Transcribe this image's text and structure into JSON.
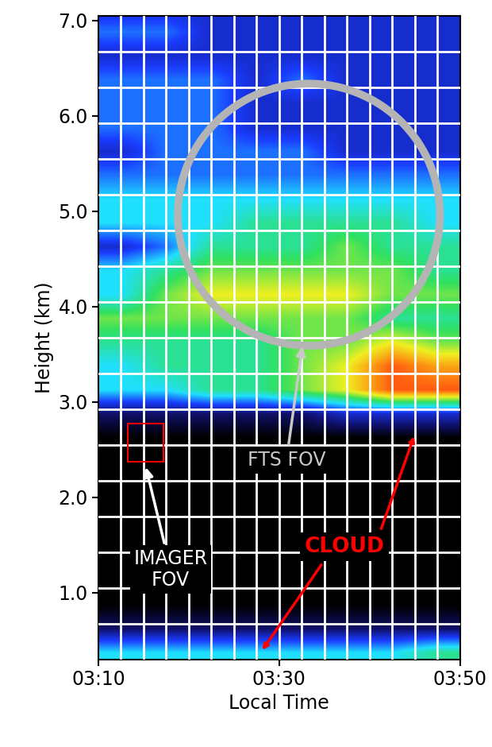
{
  "chart_data": {
    "type": "heatmap",
    "x_label": "Local Time",
    "y_label": "Height (km)",
    "xlim": [
      190,
      230
    ],
    "xticks": [
      {
        "value": 190,
        "label": "03:10"
      },
      {
        "value": 210,
        "label": "03:30"
      },
      {
        "value": 230,
        "label": "03:50"
      }
    ],
    "ylim": [
      0.3,
      7.05
    ],
    "yticks": [
      {
        "value": 1,
        "label": "1.0"
      },
      {
        "value": 2,
        "label": "2.0"
      },
      {
        "value": 3,
        "label": "3.0"
      },
      {
        "value": 4,
        "label": "4.0"
      },
      {
        "value": 5,
        "label": "5.0"
      },
      {
        "value": 6,
        "label": "6.0"
      },
      {
        "value": 7,
        "label": "7.0"
      }
    ],
    "x_edges": [
      190,
      195,
      200,
      205,
      210,
      215,
      220,
      225,
      230
    ],
    "y_edges": [
      0.25,
      0.5,
      0.75,
      1.0,
      1.25,
      1.5,
      1.75,
      2.0,
      2.25,
      2.5,
      2.75,
      3.0,
      3.25,
      3.5,
      3.75,
      4.0,
      4.25,
      4.5,
      4.75,
      5.0,
      5.25,
      5.5,
      5.75,
      6.0,
      6.25,
      6.5,
      6.75,
      7.0,
      7.25
    ],
    "value_range": [
      0,
      10
    ],
    "cells": [
      [
        4,
        4,
        4,
        4,
        4,
        4,
        4,
        5
      ],
      [
        1,
        1,
        1,
        1,
        1,
        1,
        1,
        1
      ],
      [
        0,
        0,
        0,
        0,
        0,
        0,
        0,
        0
      ],
      [
        0,
        0,
        0,
        0,
        0,
        0,
        0,
        0
      ],
      [
        0,
        0,
        0,
        0,
        0,
        0,
        0,
        0
      ],
      [
        0,
        0,
        0,
        0,
        0,
        0,
        0,
        0
      ],
      [
        0,
        0,
        0,
        0,
        0,
        0,
        0,
        0
      ],
      [
        0,
        0,
        0,
        0,
        0,
        0,
        0,
        0
      ],
      [
        0,
        0,
        0,
        0,
        0,
        0,
        0,
        0
      ],
      [
        0,
        0,
        0,
        0,
        0,
        0,
        0,
        0
      ],
      [
        1,
        1,
        1,
        1,
        1,
        2,
        2,
        2
      ],
      [
        4,
        4,
        5,
        5,
        6,
        7,
        9,
        9
      ],
      [
        4,
        5,
        5,
        5,
        6,
        7,
        9,
        8
      ],
      [
        5,
        5,
        5,
        5,
        6,
        6,
        7,
        6
      ],
      [
        6,
        6,
        6,
        6,
        6,
        6,
        5,
        5
      ],
      [
        4,
        6,
        7,
        7,
        7,
        7,
        6,
        6
      ],
      [
        4,
        5,
        6,
        6,
        6,
        6,
        6,
        5
      ],
      [
        2,
        3,
        5,
        5,
        5,
        6,
        5,
        5
      ],
      [
        4,
        4,
        4,
        5,
        5,
        5,
        5,
        4
      ],
      [
        4,
        4,
        4,
        4,
        4,
        4,
        4,
        4
      ],
      [
        3,
        3,
        3,
        3,
        3,
        3,
        3,
        3
      ],
      [
        2,
        3,
        3,
        3,
        3,
        2,
        2,
        2
      ],
      [
        3,
        3,
        3,
        2,
        2,
        2,
        2,
        2
      ],
      [
        3,
        3,
        3,
        2,
        2,
        2,
        2,
        2
      ],
      [
        3,
        3,
        3,
        2,
        3,
        2,
        2,
        2
      ],
      [
        2,
        2,
        2,
        2,
        2,
        2,
        2,
        2
      ],
      [
        3,
        3,
        2,
        2,
        2,
        2,
        2,
        2
      ],
      [
        2,
        2,
        2,
        2,
        2,
        2,
        2,
        2
      ]
    ],
    "annotations": {
      "imager": "IMAGER\nFOV",
      "fts": "FTS FOV",
      "cloud": "CLOUD"
    }
  }
}
